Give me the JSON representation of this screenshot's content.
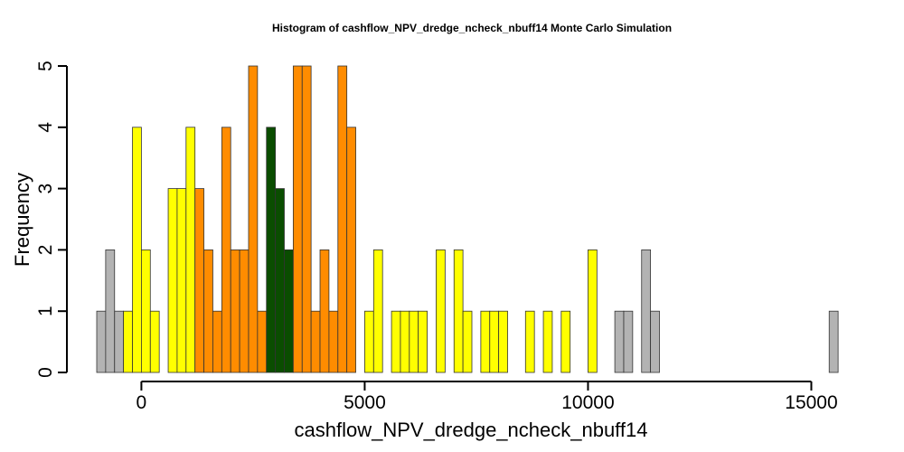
{
  "chart_data": {
    "type": "bar",
    "title": "Histogram of  cashflow_NPV_dredge_ncheck_nbuff14  Monte Carlo Simulation",
    "xlabel": "cashflow_NPV_dredge_ncheck_nbuff14",
    "ylabel": "Frequency",
    "xlim": [
      -1000,
      15800
    ],
    "ylim": [
      0,
      5
    ],
    "bin_width": 200,
    "xticks": [
      0,
      5000,
      10000,
      15000
    ],
    "xtick_labels": [
      "0",
      "5000",
      "10000",
      "15000"
    ],
    "yticks": [
      0,
      1,
      2,
      3,
      4,
      5
    ],
    "ytick_labels": [
      "0",
      "1",
      "2",
      "3",
      "4",
      "5"
    ],
    "grid": false,
    "colors": {
      "outer": "#b3b3b3",
      "yellow": "#ffff00",
      "orange": "#ff8c00",
      "green": "#0a4d00",
      "edge": "#333333"
    },
    "bins": [
      {
        "x": -1000,
        "count": 1,
        "color": "outer"
      },
      {
        "x": -800,
        "count": 2,
        "color": "outer"
      },
      {
        "x": -600,
        "count": 1,
        "color": "outer"
      },
      {
        "x": -400,
        "count": 1,
        "color": "yellow"
      },
      {
        "x": -200,
        "count": 4,
        "color": "yellow"
      },
      {
        "x": 0,
        "count": 2,
        "color": "yellow"
      },
      {
        "x": 200,
        "count": 1,
        "color": "yellow"
      },
      {
        "x": 400,
        "count": 0,
        "color": "yellow"
      },
      {
        "x": 600,
        "count": 3,
        "color": "yellow"
      },
      {
        "x": 800,
        "count": 3,
        "color": "yellow"
      },
      {
        "x": 1000,
        "count": 4,
        "color": "yellow"
      },
      {
        "x": 1200,
        "count": 3,
        "color": "orange"
      },
      {
        "x": 1400,
        "count": 2,
        "color": "orange"
      },
      {
        "x": 1600,
        "count": 1,
        "color": "orange"
      },
      {
        "x": 1800,
        "count": 4,
        "color": "orange"
      },
      {
        "x": 2000,
        "count": 2,
        "color": "orange"
      },
      {
        "x": 2200,
        "count": 2,
        "color": "orange"
      },
      {
        "x": 2400,
        "count": 5,
        "color": "orange"
      },
      {
        "x": 2600,
        "count": 1,
        "color": "orange"
      },
      {
        "x": 2800,
        "count": 4,
        "color": "green"
      },
      {
        "x": 3000,
        "count": 3,
        "color": "green"
      },
      {
        "x": 3200,
        "count": 2,
        "color": "green"
      },
      {
        "x": 3400,
        "count": 5,
        "color": "orange"
      },
      {
        "x": 3600,
        "count": 5,
        "color": "orange"
      },
      {
        "x": 3800,
        "count": 1,
        "color": "orange"
      },
      {
        "x": 4000,
        "count": 2,
        "color": "orange"
      },
      {
        "x": 4200,
        "count": 1,
        "color": "orange"
      },
      {
        "x": 4400,
        "count": 5,
        "color": "orange"
      },
      {
        "x": 4600,
        "count": 4,
        "color": "orange"
      },
      {
        "x": 4800,
        "count": 0,
        "color": "yellow"
      },
      {
        "x": 5000,
        "count": 1,
        "color": "yellow"
      },
      {
        "x": 5200,
        "count": 2,
        "color": "yellow"
      },
      {
        "x": 5400,
        "count": 0,
        "color": "yellow"
      },
      {
        "x": 5600,
        "count": 1,
        "color": "yellow"
      },
      {
        "x": 5800,
        "count": 1,
        "color": "yellow"
      },
      {
        "x": 6000,
        "count": 1,
        "color": "yellow"
      },
      {
        "x": 6200,
        "count": 1,
        "color": "yellow"
      },
      {
        "x": 6400,
        "count": 0,
        "color": "yellow"
      },
      {
        "x": 6600,
        "count": 2,
        "color": "yellow"
      },
      {
        "x": 6800,
        "count": 0,
        "color": "yellow"
      },
      {
        "x": 7000,
        "count": 2,
        "color": "yellow"
      },
      {
        "x": 7200,
        "count": 1,
        "color": "yellow"
      },
      {
        "x": 7400,
        "count": 0,
        "color": "yellow"
      },
      {
        "x": 7600,
        "count": 1,
        "color": "yellow"
      },
      {
        "x": 7800,
        "count": 1,
        "color": "yellow"
      },
      {
        "x": 8000,
        "count": 1,
        "color": "yellow"
      },
      {
        "x": 8200,
        "count": 0,
        "color": "yellow"
      },
      {
        "x": 8400,
        "count": 0,
        "color": "yellow"
      },
      {
        "x": 8600,
        "count": 1,
        "color": "yellow"
      },
      {
        "x": 8800,
        "count": 0,
        "color": "yellow"
      },
      {
        "x": 9000,
        "count": 1,
        "color": "yellow"
      },
      {
        "x": 9200,
        "count": 0,
        "color": "yellow"
      },
      {
        "x": 9400,
        "count": 1,
        "color": "yellow"
      },
      {
        "x": 9600,
        "count": 0,
        "color": "yellow"
      },
      {
        "x": 9800,
        "count": 0,
        "color": "yellow"
      },
      {
        "x": 10000,
        "count": 2,
        "color": "yellow"
      },
      {
        "x": 10200,
        "count": 0,
        "color": "yellow"
      },
      {
        "x": 10400,
        "count": 0,
        "color": "outer"
      },
      {
        "x": 10600,
        "count": 1,
        "color": "outer"
      },
      {
        "x": 10800,
        "count": 1,
        "color": "outer"
      },
      {
        "x": 11000,
        "count": 0,
        "color": "outer"
      },
      {
        "x": 11200,
        "count": 2,
        "color": "outer"
      },
      {
        "x": 11400,
        "count": 1,
        "color": "outer"
      },
      {
        "x": 11600,
        "count": 0,
        "color": "outer"
      },
      {
        "x": 11800,
        "count": 0,
        "color": "outer"
      },
      {
        "x": 12000,
        "count": 0,
        "color": "outer"
      },
      {
        "x": 12200,
        "count": 0,
        "color": "outer"
      },
      {
        "x": 12400,
        "count": 0,
        "color": "outer"
      },
      {
        "x": 12600,
        "count": 0,
        "color": "outer"
      },
      {
        "x": 12800,
        "count": 0,
        "color": "outer"
      },
      {
        "x": 13000,
        "count": 0,
        "color": "outer"
      },
      {
        "x": 13200,
        "count": 0,
        "color": "outer"
      },
      {
        "x": 13400,
        "count": 0,
        "color": "outer"
      },
      {
        "x": 13600,
        "count": 0,
        "color": "outer"
      },
      {
        "x": 13800,
        "count": 0,
        "color": "outer"
      },
      {
        "x": 14000,
        "count": 0,
        "color": "outer"
      },
      {
        "x": 14200,
        "count": 0,
        "color": "outer"
      },
      {
        "x": 14400,
        "count": 0,
        "color": "outer"
      },
      {
        "x": 14600,
        "count": 0,
        "color": "outer"
      },
      {
        "x": 14800,
        "count": 0,
        "color": "outer"
      },
      {
        "x": 15000,
        "count": 0,
        "color": "outer"
      },
      {
        "x": 15200,
        "count": 0,
        "color": "outer"
      },
      {
        "x": 15400,
        "count": 1,
        "color": "outer"
      }
    ]
  }
}
